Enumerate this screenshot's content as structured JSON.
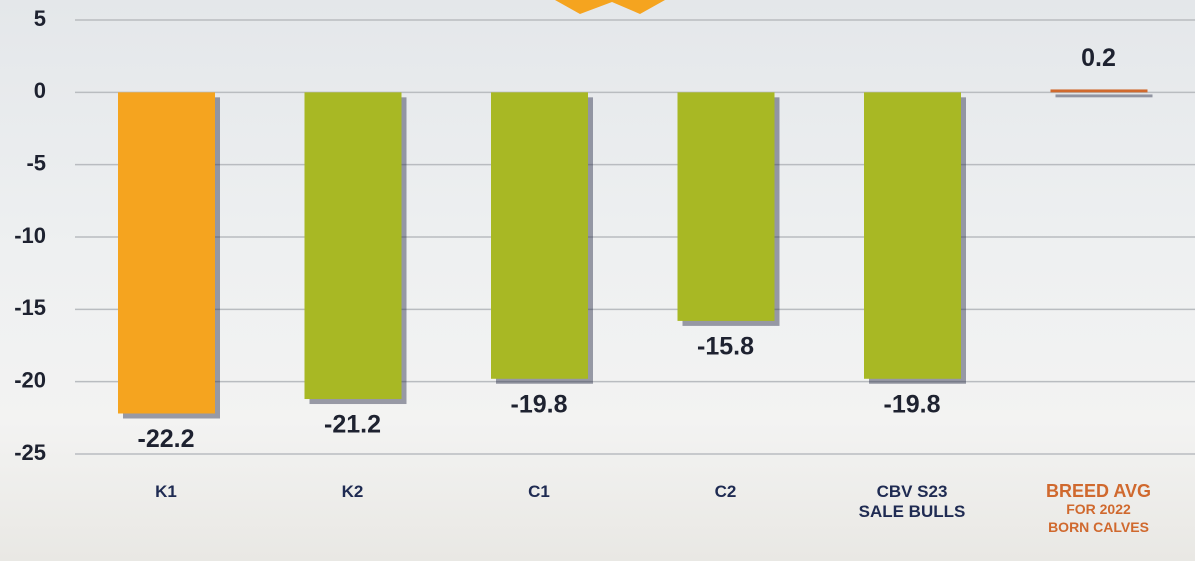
{
  "chart_data": {
    "type": "bar",
    "categories": [
      "K1",
      "K2",
      "C1",
      "C2",
      "CBV S23\nSALE BULLS",
      "BREED AVG\nFOR 2022\nBORN CALVES"
    ],
    "values": [
      -22.2,
      -21.2,
      -19.8,
      -15.8,
      -19.8,
      0.2
    ],
    "colors": [
      "#f5a41f",
      "#a8b824",
      "#a8b824",
      "#a8b824",
      "#a8b824",
      "#d0692e"
    ],
    "ylim": [
      -25,
      5
    ],
    "yticks": [
      -25,
      -20,
      -15,
      -10,
      -5,
      0,
      5
    ],
    "grid": true
  }
}
